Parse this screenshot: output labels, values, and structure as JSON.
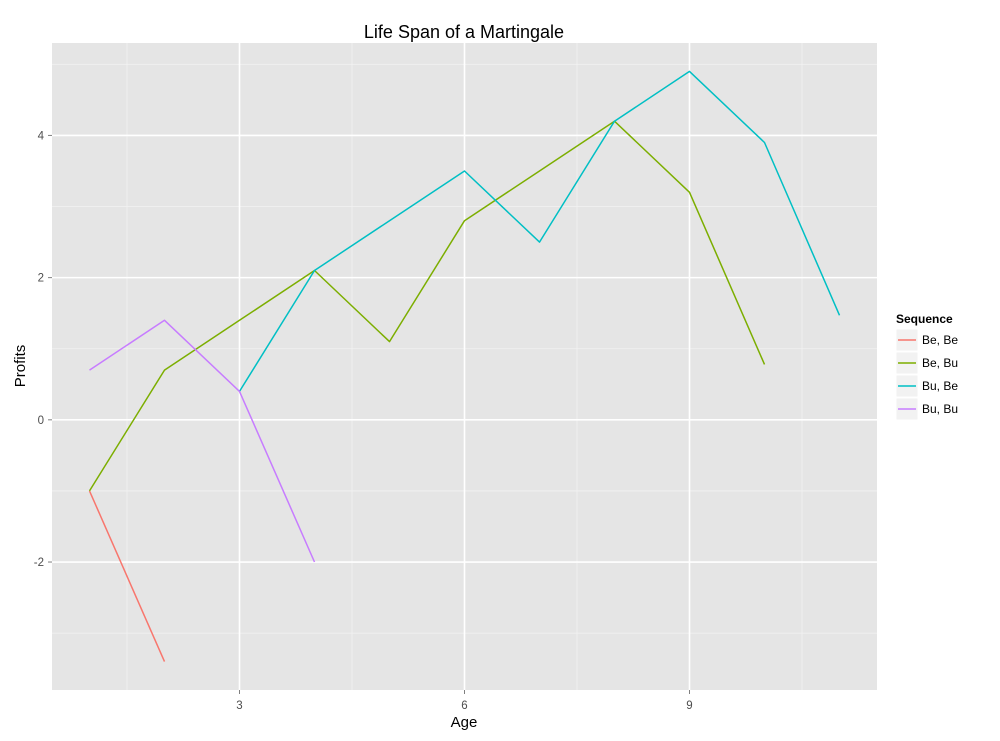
{
  "chart_data": {
    "type": "line",
    "title": "Life Span of a Martingale",
    "xlabel": "Age",
    "ylabel": "Profits",
    "xlim": [
      0.5,
      11.5
    ],
    "ylim": [
      -3.8,
      5.3
    ],
    "x_ticks": [
      3,
      6,
      9
    ],
    "x_tick_labels": [
      "3",
      "6",
      "9"
    ],
    "y_ticks": [
      -2,
      0,
      2,
      4
    ],
    "y_tick_labels": [
      "-2",
      "0",
      "2",
      "4"
    ],
    "grid": true,
    "legend": {
      "title": "Sequence",
      "position": "right"
    },
    "series": [
      {
        "name": "Be, Be",
        "color": "#F8766D",
        "x": [
          1,
          2
        ],
        "y": [
          -1.0,
          -3.4
        ]
      },
      {
        "name": "Be, Bu",
        "color": "#7CAE00",
        "x": [
          1,
          2,
          3,
          4,
          5,
          6,
          7,
          8,
          9,
          10
        ],
        "y": [
          -1.0,
          0.7,
          1.4,
          2.1,
          1.1,
          2.8,
          3.5,
          4.2,
          3.2,
          0.78
        ]
      },
      {
        "name": "Bu, Be",
        "color": "#00BFC4",
        "x": [
          3,
          4,
          5,
          6,
          7,
          8,
          9,
          10,
          11
        ],
        "y": [
          0.4,
          2.1,
          2.8,
          3.5,
          2.5,
          4.2,
          4.9,
          3.9,
          1.47
        ]
      },
      {
        "name": "Bu, Bu",
        "color": "#C77CFF",
        "x": [
          1,
          2,
          3,
          4
        ],
        "y": [
          0.7,
          1.4,
          0.4,
          -2.0
        ]
      }
    ]
  }
}
